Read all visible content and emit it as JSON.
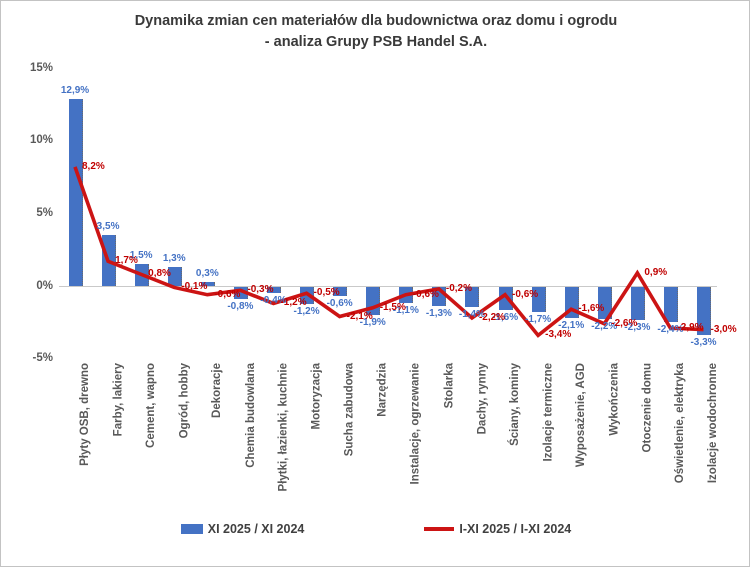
{
  "title": {
    "line1": "Dynamika zmian cen materiałów dla budownictwa oraz domu i ogrodu",
    "line2": "- analiza Grupy PSB Handel S.A."
  },
  "y_axis": {
    "tick_labels": [
      "15%",
      "10%",
      "5%",
      "0%",
      "-5%"
    ],
    "tick_values": [
      15,
      10,
      5,
      0,
      -5
    ]
  },
  "legend": {
    "bar_label": "XI 2025 / XI 2024",
    "line_label": "I-XI 2025 / I-XI 2024",
    "bar_color": "#4472c4",
    "line_color": "#cc1414"
  },
  "chart_data": {
    "type": "bar",
    "subtype": "bar+line combo",
    "title": "Dynamika zmian cen materiałów dla budownictwa oraz domu i ogrodu - analiza Grupy PSB Handel S.A.",
    "xlabel": "",
    "ylabel": "",
    "ylim": [
      -5,
      15
    ],
    "grid": false,
    "legend_position": "bottom",
    "categories": [
      "Płyty OSB, drewno",
      "Farby, lakiery",
      "Cement, wapno",
      "Ogród, hobby",
      "Dekoracje",
      "Chemia budowlana",
      "Płytki, łazienki, kuchnie",
      "Motoryzacja",
      "Sucha zabudowa",
      "Narzędzia",
      "Instalacje, ogrzewanie",
      "Stolarka",
      "Dachy, rynny",
      "Ściany, kominy",
      "Izolacje termiczne",
      "Wyposażenie, AGD",
      "Wykończenia",
      "Otoczenie domu",
      "Oświetlenie, elektryka",
      "Izolacje wodochronne"
    ],
    "series": [
      {
        "name": "XI 2025 / XI 2024",
        "type": "bar",
        "color": "#4472c4",
        "values": [
          12.9,
          3.5,
          1.5,
          1.3,
          0.3,
          -0.8,
          -0.4,
          -1.2,
          -0.6,
          -1.9,
          -1.1,
          -1.3,
          -1.4,
          -1.6,
          -1.7,
          -2.1,
          -2.2,
          -2.3,
          -2.4,
          -3.3
        ],
        "labels": [
          "12,9%",
          "3,5%",
          "1,5%",
          "1,3%",
          "0,3%",
          "-0,8%",
          "-0,4%",
          "-1,2%",
          "-0,6%",
          "-1,9%",
          "-1,1%",
          "-1,3%",
          "-1,4%",
          "-1,6%",
          "-1,7%",
          "-2,1%",
          "-2,2%",
          "-2,3%",
          "-2,4%",
          "-3,3%"
        ]
      },
      {
        "name": "I-XI 2025 / I-XI 2024",
        "type": "line",
        "color": "#cc1414",
        "values": [
          8.2,
          1.7,
          0.8,
          -0.1,
          -0.6,
          -0.3,
          -1.2,
          -0.5,
          -2.1,
          -1.5,
          -0.6,
          -0.2,
          -2.2,
          -0.6,
          -3.4,
          -1.6,
          -2.6,
          0.9,
          -2.9,
          -3.0
        ],
        "labels": [
          "8,2%",
          "1,7%",
          "0,8%",
          "-0,1%",
          "-0,6%",
          "-0,3%",
          "-1,2%",
          "-0,5%",
          "-2,1%",
          "-1,5%",
          "-0,6%",
          "-0,2%",
          "-2,2%",
          "-0,6%",
          "-3,4%",
          "-1,6%",
          "-2,6%",
          "0,9%",
          "-2,9%",
          "-3,0%"
        ]
      }
    ]
  }
}
